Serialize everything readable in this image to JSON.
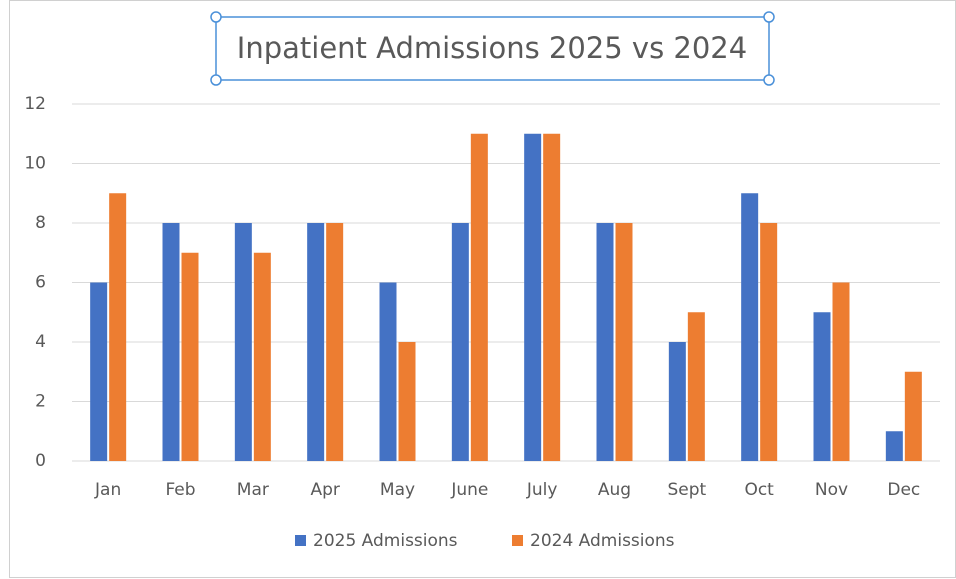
{
  "chart_data": {
    "type": "bar",
    "title": "Inpatient Admissions 2025 vs 2024",
    "categories": [
      "Jan",
      "Feb",
      "Mar",
      "Apr",
      "May",
      "June",
      "July",
      "Aug",
      "Sept",
      "Oct",
      "Nov",
      "Dec"
    ],
    "series": [
      {
        "name": "2025 Admissions",
        "color": "#4472c4",
        "values": [
          6,
          8,
          8,
          8,
          6,
          8,
          11,
          8,
          4,
          9,
          5,
          1
        ]
      },
      {
        "name": "2024 Admissions",
        "color": "#ed7d31",
        "values": [
          9,
          7,
          7,
          8,
          4,
          11,
          11,
          8,
          5,
          8,
          6,
          3
        ]
      }
    ],
    "ylim": [
      0,
      12
    ],
    "yticks": [
      0,
      2,
      4,
      6,
      8,
      10,
      12
    ],
    "grid": true,
    "legend": "bottom"
  }
}
